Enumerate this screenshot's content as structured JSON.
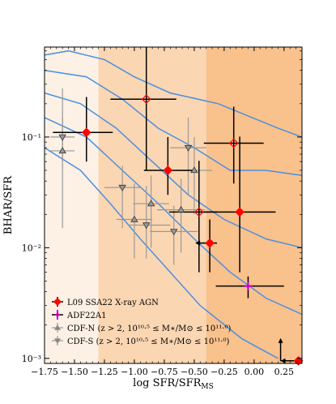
{
  "chart_data": {
    "type": "scatter",
    "xlabel": "log SFR/SFR",
    "xlabel_sub": "MS",
    "ylabel": "BHAR/SFR",
    "xlim": [
      -1.75,
      0.4
    ],
    "ylim": [
      0.0009,
      0.65
    ],
    "yscale": "log",
    "x_ticks": [
      -1.75,
      -1.5,
      -1.25,
      -1.0,
      -0.75,
      -0.5,
      -0.25,
      0.0,
      0.25
    ],
    "x_tick_labels": [
      "−1.75",
      "−1.50",
      "−1.25",
      "−1.00",
      "−0.75",
      "−0.50",
      "−0.25",
      "0.00",
      "0.25"
    ],
    "y_ticks": [
      0.001,
      0.01,
      0.1
    ],
    "y_tick_labels": [
      "10⁻³",
      "10⁻²",
      "10⁻¹"
    ],
    "bands": [
      {
        "x0": -1.75,
        "x1": -1.3,
        "color": "#fdf0e4"
      },
      {
        "x0": -1.3,
        "x1": -0.4,
        "color": "#fbd6b2"
      },
      {
        "x0": -0.4,
        "x1": 0.4,
        "color": "#f9c18c"
      }
    ],
    "legend": [
      {
        "label": "L09 SSA22 X-ray AGN",
        "color": "#ff0000",
        "marker": "diamond"
      },
      {
        "label": "ADF22A1",
        "color": "#cc00cc",
        "marker": "star"
      },
      {
        "label": "CDF-N (z > 2, 10¹⁰·⁵ ≤ M∗/M⊙ ≤ 10¹¹·⁰)",
        "color": "#888888",
        "marker": "triangle-up"
      },
      {
        "label": "CDF-S (z > 2, 10¹⁰·⁵ ≤ M∗/M⊙ ≤ 10¹¹·⁰)",
        "color": "#888888",
        "marker": "triangle-down"
      }
    ],
    "series": [
      {
        "name": "L09 SSA22 X-ray AGN",
        "points": [
          {
            "x": -1.4,
            "y": 0.11,
            "xerr": [
              0.28,
              0.22
            ],
            "yerr": [
              0.05,
              0.12
            ],
            "filled": true
          },
          {
            "x": -0.72,
            "y": 0.05,
            "xerr": [
              0.2,
              0.22
            ],
            "yerr": [
              0.02,
              0.05
            ],
            "filled": true
          },
          {
            "x": -0.37,
            "y": 0.011,
            "xerr": [
              0.06,
              0.06
            ],
            "yerr": [
              0.005,
              0.007
            ],
            "filled": true,
            "upper": true
          },
          {
            "x": -0.12,
            "y": 0.021,
            "xerr": [
              0.35,
              0.3
            ],
            "yerr": [
              0.015,
              0.08
            ],
            "filled": true
          },
          {
            "x": -0.9,
            "y": 0.22,
            "xerr": [
              0.3,
              0.25
            ],
            "yerr": [
              0.17,
              0.45
            ],
            "filled": false
          },
          {
            "x": -0.46,
            "y": 0.021,
            "xerr": [
              0.25,
              0.15
            ],
            "yerr": [
              0.015,
              0.04
            ],
            "filled": false
          },
          {
            "x": -0.17,
            "y": 0.088,
            "xerr": [
              0.25,
              0.25
            ],
            "yerr": [
              0.05,
              0.1
            ],
            "filled": false
          },
          {
            "x": 0.37,
            "y": 0.00095,
            "xerr": [
              0.0,
              0.0
            ],
            "yerr": [
              0.0,
              0.0
            ],
            "filled": true,
            "limits": "lower-right"
          }
        ]
      },
      {
        "name": "ADF22A1",
        "points": [
          {
            "x": -0.05,
            "y": 0.0045,
            "xerr": [
              0.27,
              0.3
            ],
            "yerr": [
              0.001,
              0.001
            ]
          }
        ]
      },
      {
        "name": "CDF-N",
        "points": [
          {
            "x": -1.6,
            "y": 0.075,
            "xerr": [
              0.1,
              0.1
            ],
            "yerr": [
              0.06,
              0.2
            ]
          },
          {
            "x": -0.86,
            "y": 0.025,
            "xerr": [
              0.15,
              0.15
            ],
            "yerr": [
              0.015,
              0.02
            ]
          },
          {
            "x": -0.61,
            "y": 0.022,
            "xerr": [
              0.2,
              0.2
            ],
            "yerr": [
              0.013,
              0.02
            ]
          },
          {
            "x": -0.5,
            "y": 0.05,
            "xerr": [
              0.15,
              0.15
            ],
            "yerr": [
              0.03,
              0.05
            ]
          },
          {
            "x": -1.0,
            "y": 0.018,
            "xerr": [
              0.15,
              0.15
            ],
            "yerr": [
              0.01,
              0.02
            ]
          }
        ]
      },
      {
        "name": "CDF-S",
        "points": [
          {
            "x": -1.6,
            "y": 0.1,
            "xerr": [
              0.1,
              0.1
            ],
            "yerr": [
              0.04,
              0.05
            ]
          },
          {
            "x": -0.55,
            "y": 0.08,
            "xerr": [
              0.15,
              0.15
            ],
            "yerr": [
              0.05,
              0.07
            ]
          },
          {
            "x": -1.1,
            "y": 0.035,
            "xerr": [
              0.15,
              0.15
            ],
            "yerr": [
              0.02,
              0.02
            ]
          },
          {
            "x": -0.9,
            "y": 0.016,
            "xerr": [
              0.15,
              0.2
            ],
            "yerr": [
              0.008,
              0.02
            ]
          },
          {
            "x": -0.67,
            "y": 0.014,
            "xerr": [
              0.2,
              0.2
            ],
            "yerr": [
              0.007,
              0.01
            ]
          }
        ]
      },
      {
        "name": "contours",
        "lines": [
          [
            [
              -1.75,
              0.55
            ],
            [
              -1.55,
              0.6
            ],
            [
              -1.25,
              0.5
            ],
            [
              -1.0,
              0.35
            ],
            [
              -0.7,
              0.25
            ],
            [
              -0.3,
              0.2
            ],
            [
              0.2,
              0.12
            ],
            [
              0.4,
              0.1
            ]
          ],
          [
            [
              -1.75,
              0.4
            ],
            [
              -1.4,
              0.35
            ],
            [
              -1.1,
              0.22
            ],
            [
              -0.8,
              0.12
            ],
            [
              -0.5,
              0.08
            ],
            [
              -0.2,
              0.05
            ],
            [
              0.1,
              0.05
            ],
            [
              0.4,
              0.045
            ]
          ],
          [
            [
              -1.75,
              0.25
            ],
            [
              -1.45,
              0.2
            ],
            [
              -1.15,
              0.12
            ],
            [
              -0.85,
              0.06
            ],
            [
              -0.55,
              0.03
            ],
            [
              -0.25,
              0.018
            ],
            [
              0.1,
              0.012
            ],
            [
              0.4,
              0.01
            ]
          ],
          [
            [
              -1.75,
              0.15
            ],
            [
              -1.4,
              0.1
            ],
            [
              -1.1,
              0.05
            ],
            [
              -0.8,
              0.025
            ],
            [
              -0.5,
              0.012
            ],
            [
              -0.2,
              0.006
            ],
            [
              0.1,
              0.0035
            ],
            [
              0.4,
              0.0025
            ]
          ],
          [
            [
              -1.75,
              0.08
            ],
            [
              -1.45,
              0.05
            ],
            [
              -1.2,
              0.025
            ],
            [
              -0.95,
              0.012
            ],
            [
              -0.7,
              0.006
            ],
            [
              -0.45,
              0.003
            ],
            [
              -0.1,
              0.0015
            ],
            [
              0.2,
              0.001
            ]
          ]
        ]
      }
    ]
  }
}
